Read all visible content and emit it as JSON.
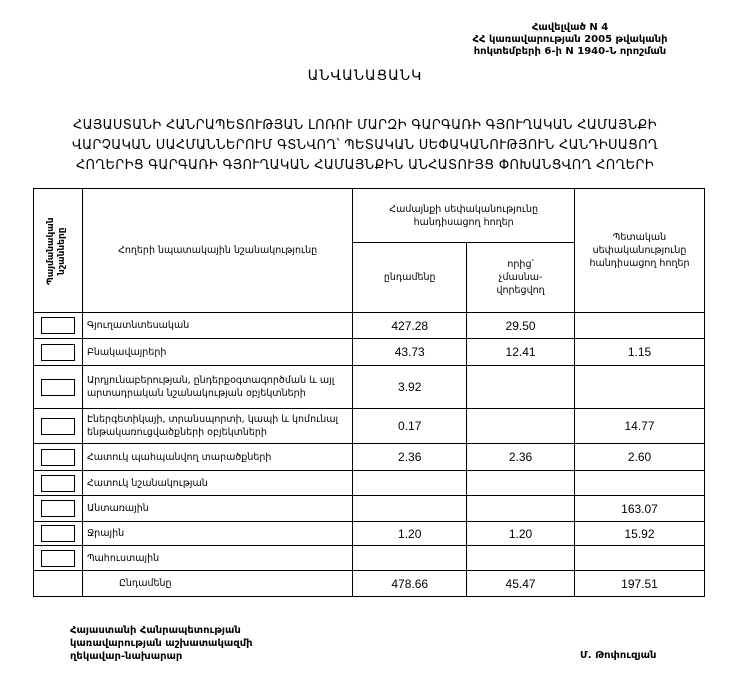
{
  "annex": {
    "line1": "Հավելված N 4",
    "line2": "ՀՀ կառավարության 2005 թվականի",
    "line3": "հոկտեմբերի 6-ի N 1940-Ն որոշման"
  },
  "title": "ԱՆՎԱՆԱՑԱՆԿ",
  "subtitle": {
    "line1": "ՀԱՅԱՍՏԱՆԻ ՀԱՆՐԱՊԵՏՈՒԹՅԱՆ ԼՈՌՈՒ ՄԱՐԶԻ ԳԱՐԳԱՌԻ ԳՅՈՒՂԱԿԱՆ ՀԱՄԱՅՆՔԻ",
    "line2": "ՎԱՐՉԱԿԱՆ ՍԱՀՄԱՆՆԵՐՈՒՄ ԳՏՆՎՈՂ՝ ՊԵՏԱԿԱՆ ՍԵՓԱԿԱՆՈՒԹՅՈՒՆ ՀԱՆԴԻՍԱՑՈՂ",
    "line3": "ՀՈՂԵՐԻՑ ԳԱՐԳԱՌԻ ԳՅՈՒՂԱԿԱՆ ՀԱՄԱՅՆՔԻՆ ԱՆՀԱՏՈՒՅՑ ՓՈԽԱՆՑՎՈՂ ՀՈՂԵՐԻ"
  },
  "table": {
    "headers": {
      "symbols": "Պայմանական նշանները",
      "purpose": "Հողերի նպատակային նշանակությունը",
      "community": "Համայնքի սեփականությունը հանդիսացող հողեր",
      "total": "ընդամենը",
      "non_privatized": "որից՝ չմասնա-վորեցվող",
      "state": "Պետական սեփականությունը հանդիսացող հողեր"
    },
    "rows": [
      {
        "label": "Գյուղատնտեսական",
        "total": "427.28",
        "non_privatized": "29.50",
        "state": ""
      },
      {
        "label": "Բնակավայրերի",
        "total": "43.73",
        "non_privatized": "12.41",
        "state": "1.15"
      },
      {
        "label": "Արդյունաբերության, ընդերքօգտագործման և այլ արտադրական նշանակության օբյեկտների",
        "total": "3.92",
        "non_privatized": "",
        "state": ""
      },
      {
        "label": "Էներգետիկայի, տրանսպորտի, կապի և կոմունալ ենթակառուցվածքների օբյեկտների",
        "total": "0.17",
        "non_privatized": "",
        "state": "14.77"
      },
      {
        "label": "Հատուկ պահպանվող տարածքների",
        "total": "2.36",
        "non_privatized": "2.36",
        "state": "2.60"
      },
      {
        "label": "Հատուկ նշանակության",
        "total": "",
        "non_privatized": "",
        "state": ""
      },
      {
        "label": "Անտառային",
        "total": "",
        "non_privatized": "",
        "state": "163.07"
      },
      {
        "label": "Ջրային",
        "total": "1.20",
        "non_privatized": "1.20",
        "state": "15.92"
      },
      {
        "label": "Պահուստային",
        "total": "",
        "non_privatized": "",
        "state": ""
      }
    ],
    "totals": {
      "label": "Ընդամենը",
      "total": "478.66",
      "non_privatized": "45.47",
      "state": "197.51"
    }
  },
  "footer": {
    "line1": "Հայաստանի Հանրապետության",
    "line2": "կառավարության աշխատակազմի",
    "line3": "ղեկավար-նախարար",
    "signatory": "Մ. Թոփուզյան"
  }
}
